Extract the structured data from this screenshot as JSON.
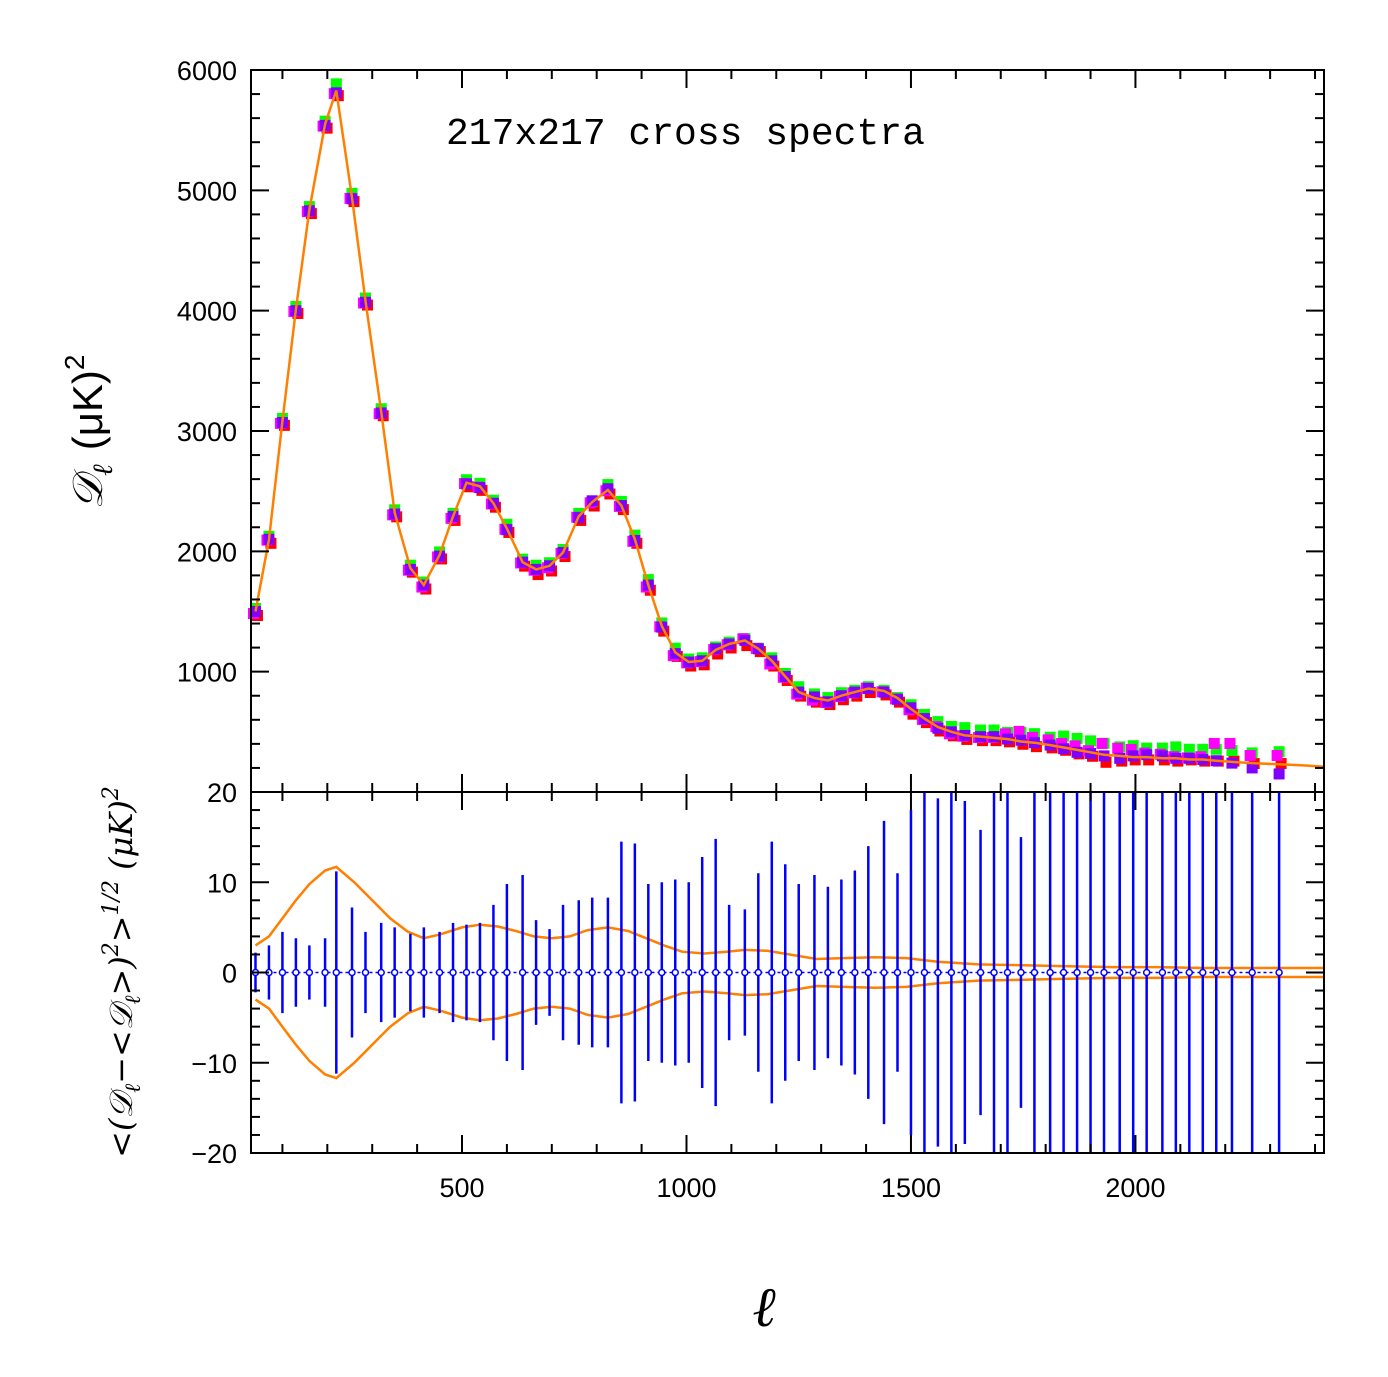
{
  "chart_data": [
    {
      "type": "scatter",
      "panel": "top",
      "title": "217x217 cross spectra",
      "xlabel": "ℓ",
      "ylabel_main": "𝒟",
      "ylabel_sub": "ℓ",
      "ylabel_unit": "(μK)",
      "ylabel_sup": "2",
      "xlim": [
        30,
        2420
      ],
      "ylim": [
        0,
        6000
      ],
      "yticks": [
        1000,
        2000,
        3000,
        4000,
        5000,
        6000
      ],
      "xticks": [
        500,
        1000,
        1500,
        2000
      ],
      "grid": false,
      "x": [
        40,
        70,
        100,
        130,
        160,
        195,
        220,
        255,
        285,
        320,
        350,
        385,
        415,
        450,
        480,
        510,
        540,
        570,
        600,
        635,
        665,
        695,
        725,
        760,
        790,
        825,
        855,
        885,
        915,
        945,
        975,
        1005,
        1035,
        1065,
        1095,
        1130,
        1160,
        1190,
        1220,
        1250,
        1285,
        1315,
        1345,
        1375,
        1405,
        1440,
        1470,
        1500,
        1530,
        1560,
        1590,
        1620,
        1655,
        1685,
        1715,
        1745,
        1775,
        1810,
        1840,
        1870,
        1900,
        1930,
        1965,
        1995,
        2025,
        2060,
        2090,
        2120,
        2150,
        2180,
        2215,
        2260,
        2320
      ],
      "series": [
        {
          "color": "#ff0000",
          "values": [
            1500,
            2100,
            3080,
            4010,
            4840,
            5550,
            5820,
            4940,
            4080,
            3160,
            2320,
            1860,
            1720,
            1970,
            2290,
            2570,
            2540,
            2400,
            2190,
            1910,
            1840,
            1870,
            1990,
            2290,
            2410,
            2510,
            2380,
            2100,
            1710,
            1370,
            1160,
            1080,
            1090,
            1180,
            1230,
            1250,
            1200,
            1080,
            960,
            830,
            780,
            760,
            800,
            830,
            860,
            840,
            780,
            680,
            610,
            540,
            500,
            470,
            460,
            460,
            450,
            430,
            410,
            400,
            380,
            350,
            330,
            280,
            290,
            300,
            300,
            300,
            290,
            300,
            290,
            290,
            290,
            270,
            270
          ]
        },
        {
          "color": "#00ff00",
          "values": [
            1500,
            2100,
            3080,
            4010,
            4840,
            5550,
            5860,
            4950,
            4080,
            3160,
            2320,
            1860,
            1720,
            1970,
            2290,
            2570,
            2540,
            2400,
            2200,
            1910,
            1860,
            1880,
            1990,
            2290,
            2390,
            2530,
            2390,
            2110,
            1740,
            1380,
            1170,
            1080,
            1090,
            1180,
            1220,
            1250,
            1170,
            1090,
            960,
            850,
            790,
            760,
            800,
            820,
            850,
            820,
            760,
            700,
            620,
            560,
            520,
            510,
            490,
            490,
            470,
            470,
            460,
            430,
            440,
            420,
            400,
            380,
            350,
            360,
            340,
            340,
            350,
            330,
            330,
            330,
            320,
            300,
            310
          ]
        },
        {
          "color": "#ff00ff",
          "values": [
            1500,
            2110,
            3080,
            4010,
            4840,
            5550,
            5820,
            4950,
            4080,
            3160,
            2320,
            1860,
            1720,
            1970,
            2290,
            2580,
            2550,
            2410,
            2200,
            1920,
            1860,
            1880,
            2000,
            2300,
            2420,
            2520,
            2390,
            2100,
            1720,
            1390,
            1150,
            1090,
            1100,
            1200,
            1240,
            1290,
            1210,
            1080,
            970,
            830,
            780,
            760,
            810,
            840,
            880,
            850,
            790,
            700,
            620,
            560,
            500,
            480,
            470,
            470,
            500,
            520,
            470,
            450,
            420,
            400,
            360,
            420,
            380,
            370,
            340,
            330,
            310,
            300,
            310,
            420,
            420,
            320,
            320
          ]
        },
        {
          "color": "#7f00ff",
          "values": [
            1500,
            2100,
            3070,
            4000,
            4830,
            5540,
            5810,
            4930,
            4070,
            3150,
            2310,
            1850,
            1720,
            1960,
            2290,
            2560,
            2530,
            2400,
            2180,
            1910,
            1850,
            1880,
            1990,
            2280,
            2420,
            2520,
            2380,
            2090,
            1720,
            1370,
            1150,
            1080,
            1090,
            1190,
            1230,
            1260,
            1190,
            1090,
            960,
            830,
            790,
            750,
            800,
            830,
            860,
            830,
            770,
            700,
            610,
            530,
            500,
            470,
            460,
            460,
            440,
            430,
            410,
            390,
            360,
            330,
            320,
            300,
            280,
            300,
            310,
            300,
            280,
            280,
            270,
            260,
            240,
            200,
            150
          ]
        }
      ],
      "model_line": {
        "color": "#ff7f00",
        "x": [
          40,
          70,
          100,
          130,
          160,
          195,
          220,
          255,
          285,
          320,
          350,
          385,
          415,
          450,
          480,
          510,
          540,
          570,
          600,
          635,
          665,
          695,
          725,
          760,
          790,
          825,
          855,
          885,
          915,
          945,
          975,
          1005,
          1035,
          1065,
          1095,
          1130,
          1160,
          1190,
          1220,
          1250,
          1285,
          1315,
          1345,
          1375,
          1405,
          1440,
          1470,
          1500,
          1530,
          1560,
          1590,
          1620,
          1655,
          1685,
          1715,
          1745,
          1775,
          1810,
          1840,
          1870,
          1900,
          1930,
          1965,
          1995,
          2025,
          2060,
          2090,
          2120,
          2150,
          2180,
          2215,
          2260,
          2320,
          2380,
          2420
        ],
        "y": [
          1500,
          2100,
          3080,
          4010,
          4840,
          5550,
          5830,
          4940,
          4080,
          3160,
          2320,
          1860,
          1720,
          1970,
          2290,
          2570,
          2540,
          2400,
          2190,
          1910,
          1850,
          1880,
          1990,
          2290,
          2410,
          2510,
          2380,
          2100,
          1720,
          1380,
          1160,
          1080,
          1090,
          1180,
          1230,
          1260,
          1190,
          1090,
          960,
          830,
          780,
          760,
          800,
          830,
          860,
          840,
          780,
          690,
          610,
          540,
          500,
          470,
          460,
          450,
          440,
          420,
          410,
          390,
          370,
          350,
          330,
          310,
          300,
          290,
          290,
          280,
          280,
          270,
          270,
          260,
          250,
          240,
          230,
          220,
          210
        ]
      }
    },
    {
      "type": "scatter",
      "panel": "bottom",
      "xlabel": "ℓ",
      "ylabel": "<(𝒟ℓ−<𝒟ℓ>)²>^1/2 (μK)²",
      "ylabel_parts": {
        "open": "<(",
        "d1": "𝒟",
        "sub1": "ℓ",
        "minus": "−<",
        "d2": "𝒟",
        "sub2": "ℓ",
        "close": ">)",
        "sup1": "2",
        "gt": ">",
        "sup2": "1/2",
        "unit": " (μK)",
        "sup3": "2"
      },
      "xlim": [
        30,
        2420
      ],
      "ylim": [
        -20,
        20
      ],
      "yticks": [
        -20,
        -10,
        0,
        10,
        20
      ],
      "xticks": [
        500,
        1000,
        1500,
        2000
      ],
      "grid": false,
      "points": {
        "color": "#0000ff",
        "x": [
          40,
          70,
          100,
          130,
          160,
          195,
          220,
          255,
          285,
          320,
          350,
          385,
          415,
          450,
          480,
          510,
          540,
          570,
          600,
          635,
          665,
          695,
          725,
          760,
          790,
          825,
          855,
          885,
          915,
          945,
          975,
          1005,
          1035,
          1065,
          1095,
          1130,
          1160,
          1190,
          1220,
          1250,
          1285,
          1315,
          1345,
          1375,
          1405,
          1440,
          1470,
          1500,
          1530,
          1560,
          1590,
          1620,
          1655,
          1685,
          1715,
          1745,
          1775,
          1810,
          1840,
          1870,
          1900,
          1930,
          1965,
          1995,
          2025,
          2060,
          2090,
          2120,
          2150,
          2180,
          2215,
          2260,
          2320
        ],
        "y": [
          0,
          0,
          0,
          0,
          0,
          0,
          0,
          0,
          0,
          0,
          0,
          0,
          0,
          0,
          0,
          0,
          0,
          0,
          0,
          0,
          0,
          0,
          0,
          0,
          0,
          0,
          0,
          0,
          0,
          0,
          0,
          0,
          0,
          0,
          0,
          0,
          0,
          0,
          0,
          0,
          0,
          0,
          0,
          0,
          0,
          0,
          0,
          0,
          0,
          0,
          0,
          0,
          0,
          0,
          0,
          0,
          0,
          0,
          0,
          0,
          0,
          0,
          0,
          0,
          0,
          0,
          0,
          0,
          0,
          0,
          0,
          0,
          0
        ],
        "errors": [
          2.2,
          3.0,
          4.5,
          3.8,
          3.0,
          3.8,
          11.2,
          7.2,
          4.5,
          5.5,
          5.0,
          4.3,
          5.0,
          4.5,
          5.5,
          5.3,
          5.5,
          7.5,
          9.8,
          10.8,
          5.8,
          4.8,
          7.5,
          8.0,
          8.3,
          8.3,
          14.5,
          14.3,
          9.8,
          10.0,
          10.3,
          10.0,
          12.8,
          14.8,
          7.5,
          7.0,
          11.0,
          14.5,
          12.0,
          9.8,
          10.8,
          9.5,
          10.3,
          11.3,
          14.0,
          16.8,
          11.0,
          18.0,
          20.0,
          19.3,
          20.0,
          19.0,
          15.8,
          20.0,
          20.0,
          15.0,
          20.0,
          20.0,
          20.0,
          20.0,
          20.0,
          20.0,
          20.0,
          20.0,
          20.0,
          20.0,
          20.0,
          20.0,
          20.0,
          20.0,
          20.0,
          20.0,
          20.0
        ]
      },
      "envelope": {
        "color": "#ff7f00",
        "x": [
          40,
          70,
          100,
          130,
          160,
          195,
          220,
          260,
          300,
          340,
          380,
          415,
          450,
          500,
          540,
          580,
          620,
          660,
          700,
          740,
          780,
          825,
          870,
          910,
          950,
          990,
          1040,
          1090,
          1130,
          1180,
          1230,
          1290,
          1350,
          1420,
          1490,
          1560,
          1650,
          1750,
          1850,
          1950,
          2050,
          2150,
          2250,
          2350,
          2420
        ],
        "upper": [
          3.0,
          4.0,
          6.0,
          8.0,
          9.8,
          11.3,
          11.7,
          10.0,
          8.0,
          6.0,
          4.5,
          3.8,
          4.2,
          5.0,
          5.3,
          5.1,
          4.6,
          4.0,
          3.8,
          4.0,
          4.7,
          5.0,
          4.6,
          3.8,
          3.0,
          2.3,
          2.1,
          2.3,
          2.5,
          2.4,
          2.0,
          1.5,
          1.6,
          1.7,
          1.6,
          1.2,
          0.9,
          0.8,
          0.7,
          0.6,
          0.6,
          0.5,
          0.5,
          0.5,
          0.5
        ]
      }
    }
  ]
}
